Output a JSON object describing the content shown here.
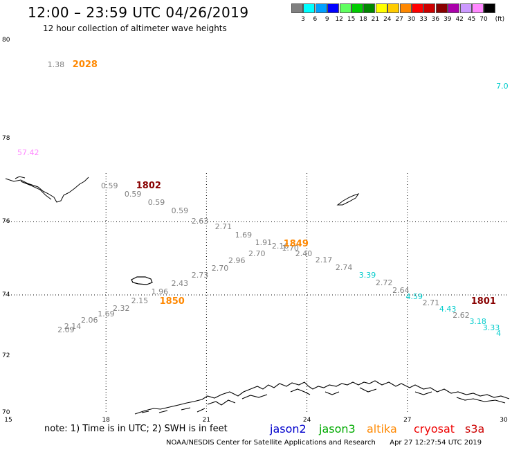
{
  "header": {
    "title": "12:00 – 23:59 UTC 04/26/2019",
    "subtitle": "12 hour collection of altimeter wave heights"
  },
  "legend": {
    "unit": "(ft)",
    "bins": [
      {
        "label": "3",
        "color": "#808080"
      },
      {
        "label": "6",
        "color": "#00ffff"
      },
      {
        "label": "9",
        "color": "#00a0ff"
      },
      {
        "label": "12",
        "color": "#0000ff"
      },
      {
        "label": "15",
        "color": "#60ff60"
      },
      {
        "label": "18",
        "color": "#00cc00"
      },
      {
        "label": "21",
        "color": "#008800"
      },
      {
        "label": "24",
        "color": "#ffff00"
      },
      {
        "label": "27",
        "color": "#ffcc00"
      },
      {
        "label": "30",
        "color": "#ff8800"
      },
      {
        "label": "33",
        "color": "#ff0000"
      },
      {
        "label": "36",
        "color": "#cc0000"
      },
      {
        "label": "39",
        "color": "#880000"
      },
      {
        "label": "42",
        "color": "#aa00aa"
      },
      {
        "label": "45",
        "color": "#cc99ff"
      },
      {
        "label": "70",
        "color": "#ff88ff"
      },
      {
        "label": "",
        "color": "#000000"
      }
    ]
  },
  "axes": {
    "lat_labels": [
      "80",
      "78",
      "76",
      "74",
      "72",
      "70"
    ],
    "lon_labels": [
      "15",
      "18",
      "21",
      "24",
      "27",
      "30"
    ],
    "lat_range": [
      70,
      80
    ],
    "lon_range": [
      15,
      30
    ],
    "grid": "dotted"
  },
  "samples": [
    {
      "text": "1.38",
      "color": "#808080",
      "lon": 16.5,
      "lat": 79.5
    },
    {
      "text": "7.0",
      "color": "#00cccc",
      "lon": 29.9,
      "lat": 79.05
    },
    {
      "text": "57.42",
      "color": "#ff88ff",
      "lon": 15.6,
      "lat": 77.65
    },
    {
      "text": "0.59",
      "color": "#808080",
      "lon": 18.1,
      "lat": 76.85
    },
    {
      "text": "0.59",
      "color": "#808080",
      "lon": 18.8,
      "lat": 76.65
    },
    {
      "text": "0.59",
      "color": "#808080",
      "lon": 19.5,
      "lat": 76.45
    },
    {
      "text": "0.59",
      "color": "#808080",
      "lon": 20.2,
      "lat": 76.25
    },
    {
      "text": "2.63",
      "color": "#808080",
      "lon": 20.8,
      "lat": 76.0
    },
    {
      "text": "2.71",
      "color": "#808080",
      "lon": 21.5,
      "lat": 75.85
    },
    {
      "text": "1.69",
      "color": "#808080",
      "lon": 22.1,
      "lat": 75.62
    },
    {
      "text": "1.91",
      "color": "#808080",
      "lon": 22.7,
      "lat": 75.42
    },
    {
      "text": "2.16",
      "color": "#808080",
      "lon": 23.2,
      "lat": 75.32
    },
    {
      "text": "1.70",
      "color": "#808080",
      "lon": 23.5,
      "lat": 75.27
    },
    {
      "text": "2.70",
      "color": "#808080",
      "lon": 22.5,
      "lat": 75.12
    },
    {
      "text": "2.96",
      "color": "#808080",
      "lon": 21.9,
      "lat": 74.92
    },
    {
      "text": "2.70",
      "color": "#808080",
      "lon": 21.4,
      "lat": 74.72
    },
    {
      "text": "2.73",
      "color": "#808080",
      "lon": 20.8,
      "lat": 74.52
    },
    {
      "text": "2.43",
      "color": "#808080",
      "lon": 20.2,
      "lat": 74.3
    },
    {
      "text": "1.96",
      "color": "#808080",
      "lon": 19.6,
      "lat": 74.08
    },
    {
      "text": "2.15",
      "color": "#808080",
      "lon": 19.0,
      "lat": 73.8
    },
    {
      "text": "2.32",
      "color": "#808080",
      "lon": 18.45,
      "lat": 73.55
    },
    {
      "text": "1.69",
      "color": "#808080",
      "lon": 18.0,
      "lat": 73.36
    },
    {
      "text": "2.06",
      "color": "#808080",
      "lon": 17.5,
      "lat": 73.15
    },
    {
      "text": "2.14",
      "color": "#808080",
      "lon": 17.0,
      "lat": 72.95
    },
    {
      "text": "2.09",
      "color": "#808080",
      "lon": 16.8,
      "lat": 72.83
    },
    {
      "text": "2.40",
      "color": "#808080",
      "lon": 23.9,
      "lat": 75.12
    },
    {
      "text": "2.17",
      "color": "#808080",
      "lon": 24.5,
      "lat": 74.94
    },
    {
      "text": "2.74",
      "color": "#808080",
      "lon": 25.1,
      "lat": 74.74
    },
    {
      "text": "3.39",
      "color": "#00cccc",
      "lon": 25.8,
      "lat": 74.52
    },
    {
      "text": "2.72",
      "color": "#808080",
      "lon": 26.3,
      "lat": 74.32
    },
    {
      "text": "2.64",
      "color": "#808080",
      "lon": 26.8,
      "lat": 74.12
    },
    {
      "text": "4.59",
      "color": "#00cccc",
      "lon": 27.2,
      "lat": 73.93
    },
    {
      "text": "2.71",
      "color": "#808080",
      "lon": 27.7,
      "lat": 73.72
    },
    {
      "text": "4.43",
      "color": "#00cccc",
      "lon": 28.2,
      "lat": 73.52
    },
    {
      "text": "2.62",
      "color": "#808080",
      "lon": 28.6,
      "lat": 73.32
    },
    {
      "text": "3.18",
      "color": "#00cccc",
      "lon": 29.1,
      "lat": 73.12
    },
    {
      "text": "3.33",
      "color": "#00cccc",
      "lon": 29.5,
      "lat": 72.92
    },
    {
      "text": "4",
      "color": "#00cccc",
      "lon": 29.9,
      "lat": 72.72
    }
  ],
  "pass_times": [
    {
      "text": "2028",
      "color": "#ff8800",
      "lon": 17.0,
      "lat": 79.5
    },
    {
      "text": "1802",
      "color": "#880000",
      "lon": 18.9,
      "lat": 76.85
    },
    {
      "text": "1849",
      "color": "#ff8800",
      "lon": 23.3,
      "lat": 75.38
    },
    {
      "text": "1850",
      "color": "#ff8800",
      "lon": 19.6,
      "lat": 73.77
    },
    {
      "text": "1801",
      "color": "#880000",
      "lon": 28.9,
      "lat": 73.77
    }
  ],
  "footer": {
    "note": "note:  1) Time is in UTC;  2) SWH is in feet",
    "satellites": [
      {
        "name": "jason2",
        "color": "#0000cc"
      },
      {
        "name": "jason3",
        "color": "#00aa00"
      },
      {
        "name": "altika",
        "color": "#ff8800"
      },
      {
        "name": "cryosat",
        "color": "#ee0000"
      },
      {
        "name": "s3a",
        "color": "#cc0000"
      }
    ],
    "credit": "NOAA/NESDIS Center for Satellite Applications and Research",
    "timestamp": "Apr 27 12:27:54 UTC 2019"
  }
}
